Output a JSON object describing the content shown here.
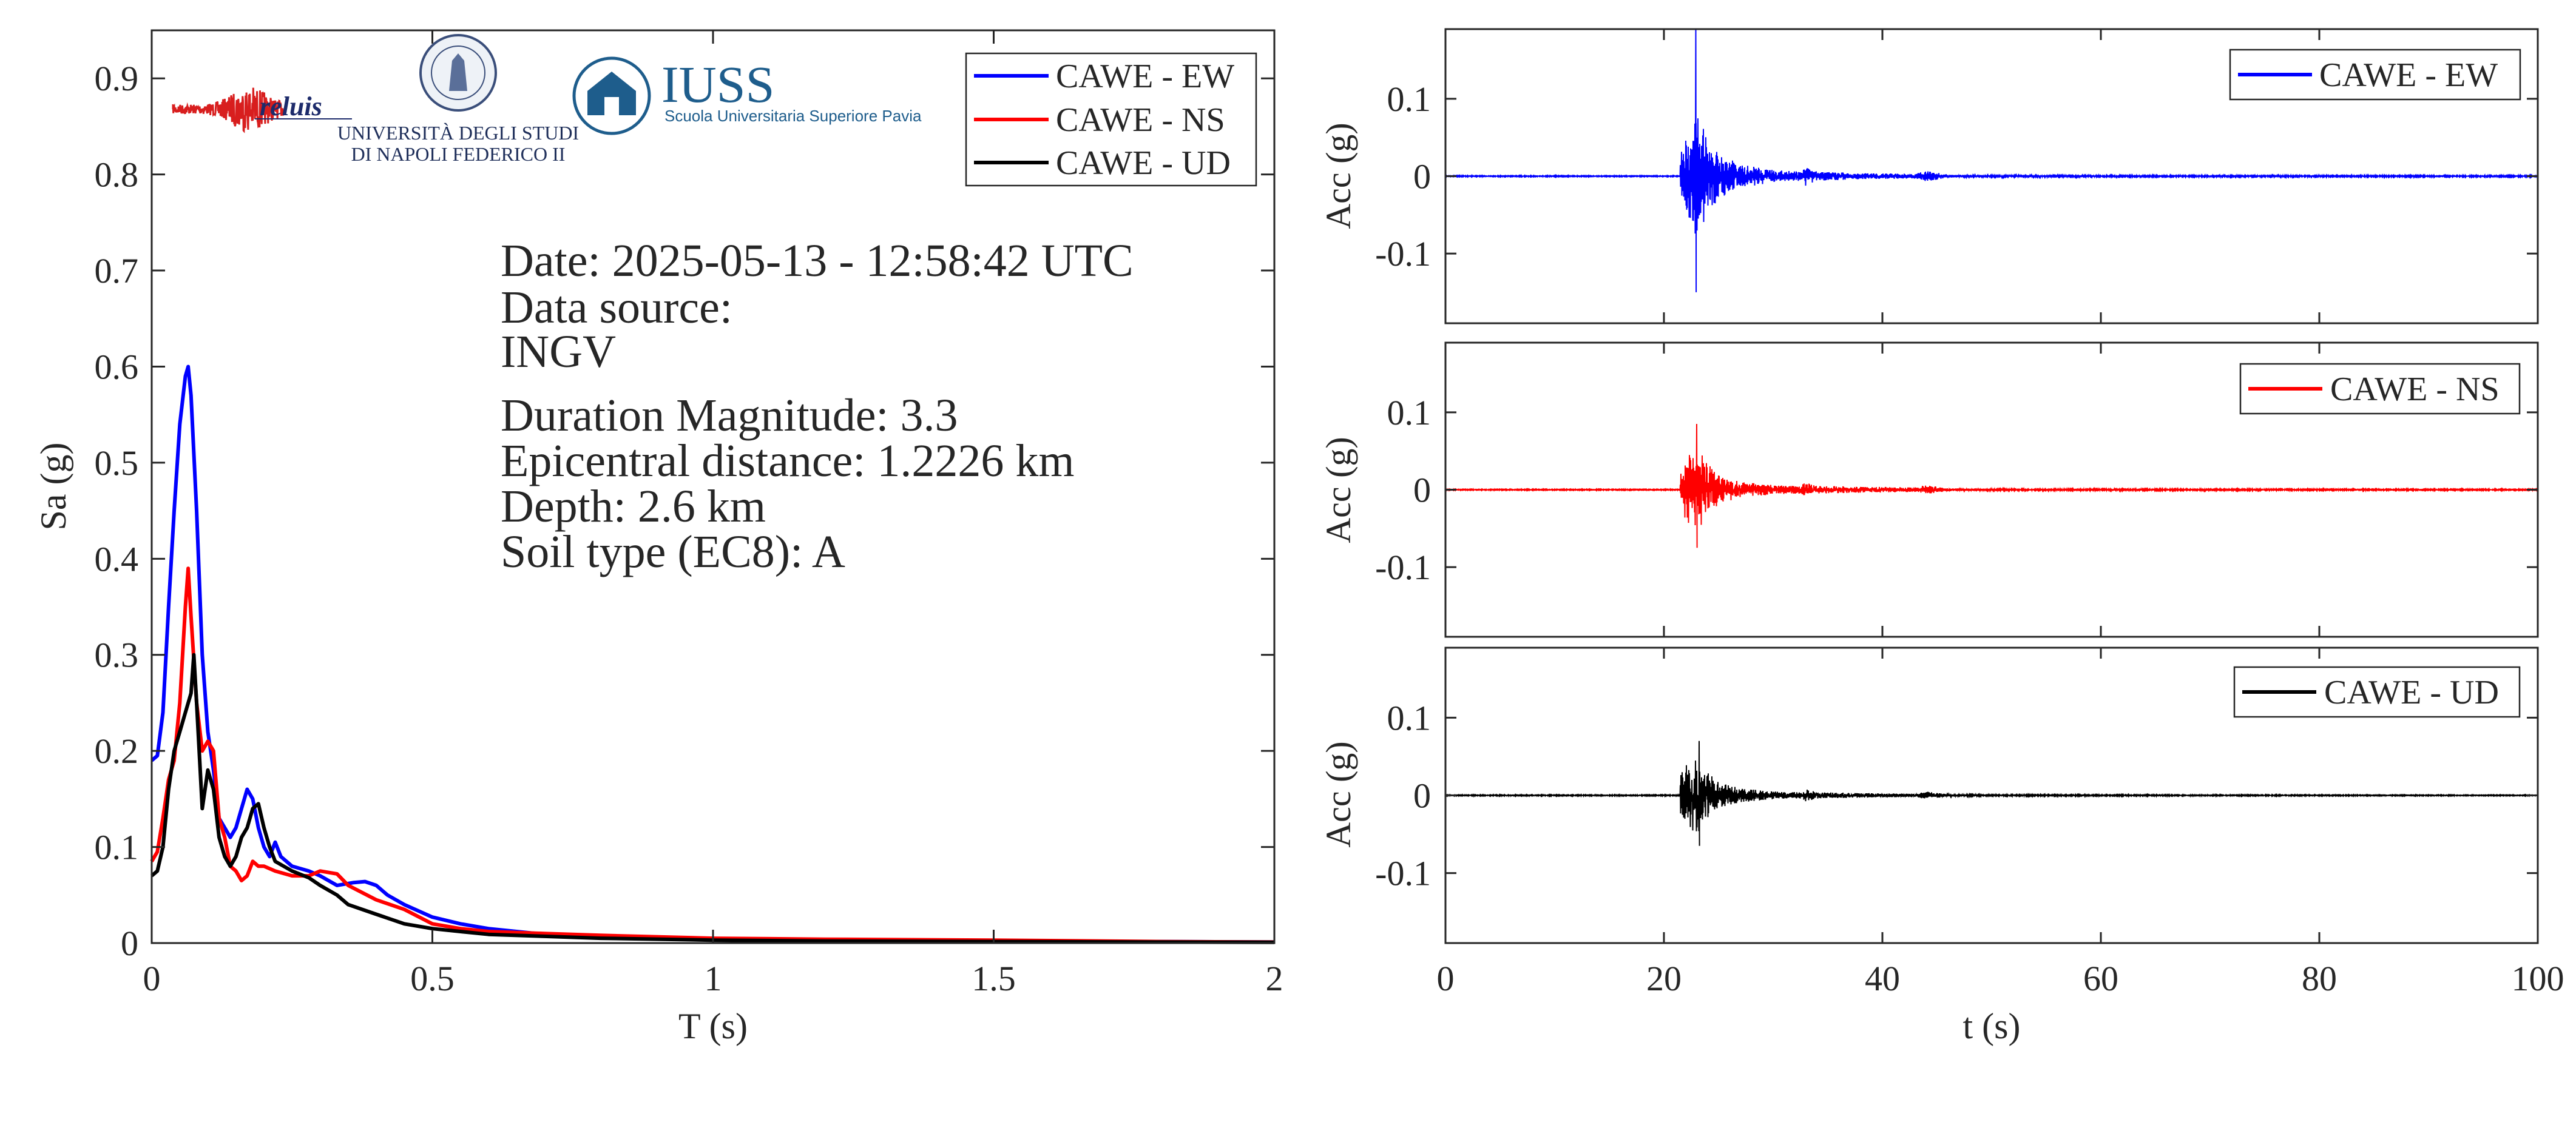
{
  "logos": {
    "reluis": "reluis",
    "unina_line1": "UNIVERSITÀ DEGLI STUDI",
    "unina_line2": "DI NAPOLI FEDERICO II",
    "iuss_name": "IUSS",
    "iuss_subtitle": "Scuola Universitaria Superiore Pavia"
  },
  "info": {
    "date": "Date: 2025-05-13 - 12:58:42 UTC",
    "source_label": "Data source:",
    "source_value": "INGV",
    "magnitude": "Duration Magnitude: 3.3",
    "distance": "Epicentral distance: 1.2226 km",
    "depth": "Depth: 2.6 km",
    "soil": "Soil type (EC8): A"
  },
  "colors": {
    "ew": "#0000ff",
    "ns": "#ff0000",
    "ud": "#000000"
  },
  "chart_data": [
    {
      "type": "line",
      "id": "spectrum",
      "xlabel": "T (s)",
      "ylabel": "Sa (g)",
      "xlim": [
        0,
        2
      ],
      "ylim": [
        0,
        0.95
      ],
      "xticks": [
        0,
        0.5,
        1,
        1.5,
        2
      ],
      "xtick_labels": [
        "0",
        "0.5",
        "1",
        "1.5",
        "2"
      ],
      "yticks": [
        0,
        0.1,
        0.2,
        0.3,
        0.4,
        0.5,
        0.6,
        0.7,
        0.8,
        0.9
      ],
      "ytick_labels": [
        "0",
        "0.1",
        "0.2",
        "0.3",
        "0.4",
        "0.5",
        "0.6",
        "0.7",
        "0.8",
        "0.9"
      ],
      "grid": false,
      "legend": "top-right",
      "series": [
        {
          "name": "CAWE - EW",
          "color": "#0000ff",
          "x": [
            0,
            0.01,
            0.02,
            0.03,
            0.04,
            0.05,
            0.06,
            0.065,
            0.07,
            0.08,
            0.09,
            0.1,
            0.11,
            0.12,
            0.13,
            0.14,
            0.15,
            0.16,
            0.17,
            0.18,
            0.19,
            0.2,
            0.21,
            0.22,
            0.23,
            0.25,
            0.28,
            0.3,
            0.33,
            0.36,
            0.38,
            0.4,
            0.42,
            0.45,
            0.5,
            0.55,
            0.6,
            0.7,
            0.8,
            1.0,
            1.2,
            1.5,
            1.8,
            2.0
          ],
          "y": [
            0.19,
            0.195,
            0.24,
            0.35,
            0.45,
            0.54,
            0.59,
            0.6,
            0.57,
            0.45,
            0.3,
            0.22,
            0.18,
            0.13,
            0.12,
            0.11,
            0.12,
            0.14,
            0.16,
            0.15,
            0.12,
            0.1,
            0.09,
            0.105,
            0.09,
            0.08,
            0.075,
            0.07,
            0.06,
            0.063,
            0.064,
            0.06,
            0.05,
            0.04,
            0.027,
            0.02,
            0.015,
            0.009,
            0.006,
            0.004,
            0.003,
            0.002,
            0.0015,
            0.001
          ]
        },
        {
          "name": "CAWE - NS",
          "color": "#ff0000",
          "x": [
            0,
            0.01,
            0.02,
            0.03,
            0.04,
            0.05,
            0.06,
            0.065,
            0.07,
            0.08,
            0.09,
            0.1,
            0.11,
            0.12,
            0.13,
            0.14,
            0.15,
            0.16,
            0.17,
            0.18,
            0.19,
            0.2,
            0.22,
            0.25,
            0.28,
            0.3,
            0.33,
            0.35,
            0.4,
            0.45,
            0.5,
            0.55,
            0.6,
            0.7,
            0.8,
            1.0,
            1.2,
            1.5,
            1.8,
            2.0
          ],
          "y": [
            0.085,
            0.095,
            0.13,
            0.17,
            0.19,
            0.25,
            0.35,
            0.39,
            0.34,
            0.25,
            0.2,
            0.21,
            0.2,
            0.13,
            0.11,
            0.08,
            0.075,
            0.065,
            0.07,
            0.085,
            0.08,
            0.08,
            0.075,
            0.07,
            0.07,
            0.075,
            0.072,
            0.06,
            0.045,
            0.035,
            0.02,
            0.015,
            0.012,
            0.01,
            0.008,
            0.005,
            0.004,
            0.003,
            0.0015,
            0.001
          ]
        },
        {
          "name": "CAWE - UD",
          "color": "#000000",
          "x": [
            0,
            0.01,
            0.02,
            0.03,
            0.04,
            0.05,
            0.06,
            0.07,
            0.075,
            0.08,
            0.09,
            0.1,
            0.11,
            0.12,
            0.13,
            0.14,
            0.15,
            0.16,
            0.17,
            0.18,
            0.19,
            0.2,
            0.21,
            0.22,
            0.25,
            0.28,
            0.3,
            0.33,
            0.35,
            0.4,
            0.45,
            0.5,
            0.55,
            0.6,
            0.7,
            0.8,
            1.0,
            1.2,
            1.5,
            1.8,
            2.0
          ],
          "y": [
            0.07,
            0.075,
            0.1,
            0.16,
            0.2,
            0.22,
            0.24,
            0.26,
            0.3,
            0.25,
            0.14,
            0.18,
            0.16,
            0.11,
            0.09,
            0.08,
            0.09,
            0.11,
            0.12,
            0.14,
            0.145,
            0.12,
            0.1,
            0.085,
            0.075,
            0.068,
            0.06,
            0.05,
            0.04,
            0.03,
            0.02,
            0.015,
            0.012,
            0.009,
            0.007,
            0.005,
            0.003,
            0.002,
            0.0015,
            0.001,
            0.0008
          ]
        }
      ]
    },
    {
      "type": "line",
      "id": "acc-ew",
      "xlabel": "",
      "ylabel": "Acc (g)",
      "xlim": [
        0,
        100
      ],
      "ylim": [
        -0.19,
        0.19
      ],
      "yticks": [
        -0.1,
        0,
        0.1
      ],
      "ytick_labels": [
        "-0.1",
        "0",
        "0.1"
      ],
      "grid": false,
      "legend": "top-right",
      "series": [
        {
          "name": "CAWE - EW",
          "color": "#0000ff",
          "duration": 100,
          "onset": 21.5,
          "peak_t": 22.9,
          "peak_pos": 0.19,
          "peak_neg": -0.15,
          "envelope": [
            [
              21.5,
              0.03
            ],
            [
              22.0,
              0.05
            ],
            [
              23.0,
              0.08
            ],
            [
              24.0,
              0.05
            ],
            [
              25.0,
              0.03
            ],
            [
              27.0,
              0.015
            ],
            [
              30.0,
              0.008
            ],
            [
              32.5,
              0.006
            ],
            [
              33.0,
              0.014
            ],
            [
              34.0,
              0.006
            ],
            [
              38.0,
              0.004
            ],
            [
              43.0,
              0.003
            ],
            [
              44.0,
              0.007
            ],
            [
              46.0,
              0.002
            ],
            [
              50.0,
              0.001
            ],
            [
              100.0,
              0.0008
            ]
          ]
        }
      ]
    },
    {
      "type": "line",
      "id": "acc-ns",
      "xlabel": "",
      "ylabel": "Acc (g)",
      "xlim": [
        0,
        100
      ],
      "ylim": [
        -0.19,
        0.19
      ],
      "yticks": [
        -0.1,
        0,
        0.1
      ],
      "ytick_labels": [
        "-0.1",
        "0",
        "0.1"
      ],
      "grid": false,
      "legend": "top-right",
      "series": [
        {
          "name": "CAWE - NS",
          "color": "#ff0000",
          "duration": 100,
          "onset": 21.5,
          "peak_t": 23.0,
          "peak_pos": 0.085,
          "peak_neg": -0.075,
          "envelope": [
            [
              21.5,
              0.025
            ],
            [
              22.0,
              0.04
            ],
            [
              23.0,
              0.055
            ],
            [
              24.0,
              0.035
            ],
            [
              25.0,
              0.02
            ],
            [
              27.0,
              0.01
            ],
            [
              30.0,
              0.006
            ],
            [
              32.5,
              0.005
            ],
            [
              33.0,
              0.01
            ],
            [
              34.0,
              0.005
            ],
            [
              38.0,
              0.004
            ],
            [
              43.0,
              0.003
            ],
            [
              44.0,
              0.006
            ],
            [
              46.0,
              0.002
            ],
            [
              50.0,
              0.001
            ],
            [
              100.0,
              0.0007
            ]
          ]
        }
      ]
    },
    {
      "type": "line",
      "id": "acc-ud",
      "xlabel": "t (s)",
      "ylabel": "Acc (g)",
      "xlim": [
        0,
        100
      ],
      "ylim": [
        -0.19,
        0.19
      ],
      "xticks": [
        0,
        20,
        40,
        60,
        80,
        100
      ],
      "xtick_labels": [
        "0",
        "20",
        "40",
        "60",
        "80",
        "100"
      ],
      "yticks": [
        -0.1,
        0,
        0.1
      ],
      "ytick_labels": [
        "-0.1",
        "0",
        "0.1"
      ],
      "grid": false,
      "legend": "top-right",
      "series": [
        {
          "name": "CAWE - UD",
          "color": "#000000",
          "duration": 100,
          "onset": 21.5,
          "peak_t": 23.2,
          "peak_pos": 0.07,
          "peak_neg": -0.065,
          "envelope": [
            [
              21.5,
              0.025
            ],
            [
              22.0,
              0.04
            ],
            [
              23.0,
              0.05
            ],
            [
              24.0,
              0.03
            ],
            [
              25.0,
              0.018
            ],
            [
              27.0,
              0.009
            ],
            [
              30.0,
              0.005
            ],
            [
              32.5,
              0.004
            ],
            [
              33.0,
              0.008
            ],
            [
              34.0,
              0.004
            ],
            [
              38.0,
              0.003
            ],
            [
              43.0,
              0.002
            ],
            [
              44.0,
              0.005
            ],
            [
              46.0,
              0.0015
            ],
            [
              50.0,
              0.0008
            ],
            [
              100.0,
              0.0005
            ]
          ]
        }
      ]
    }
  ]
}
